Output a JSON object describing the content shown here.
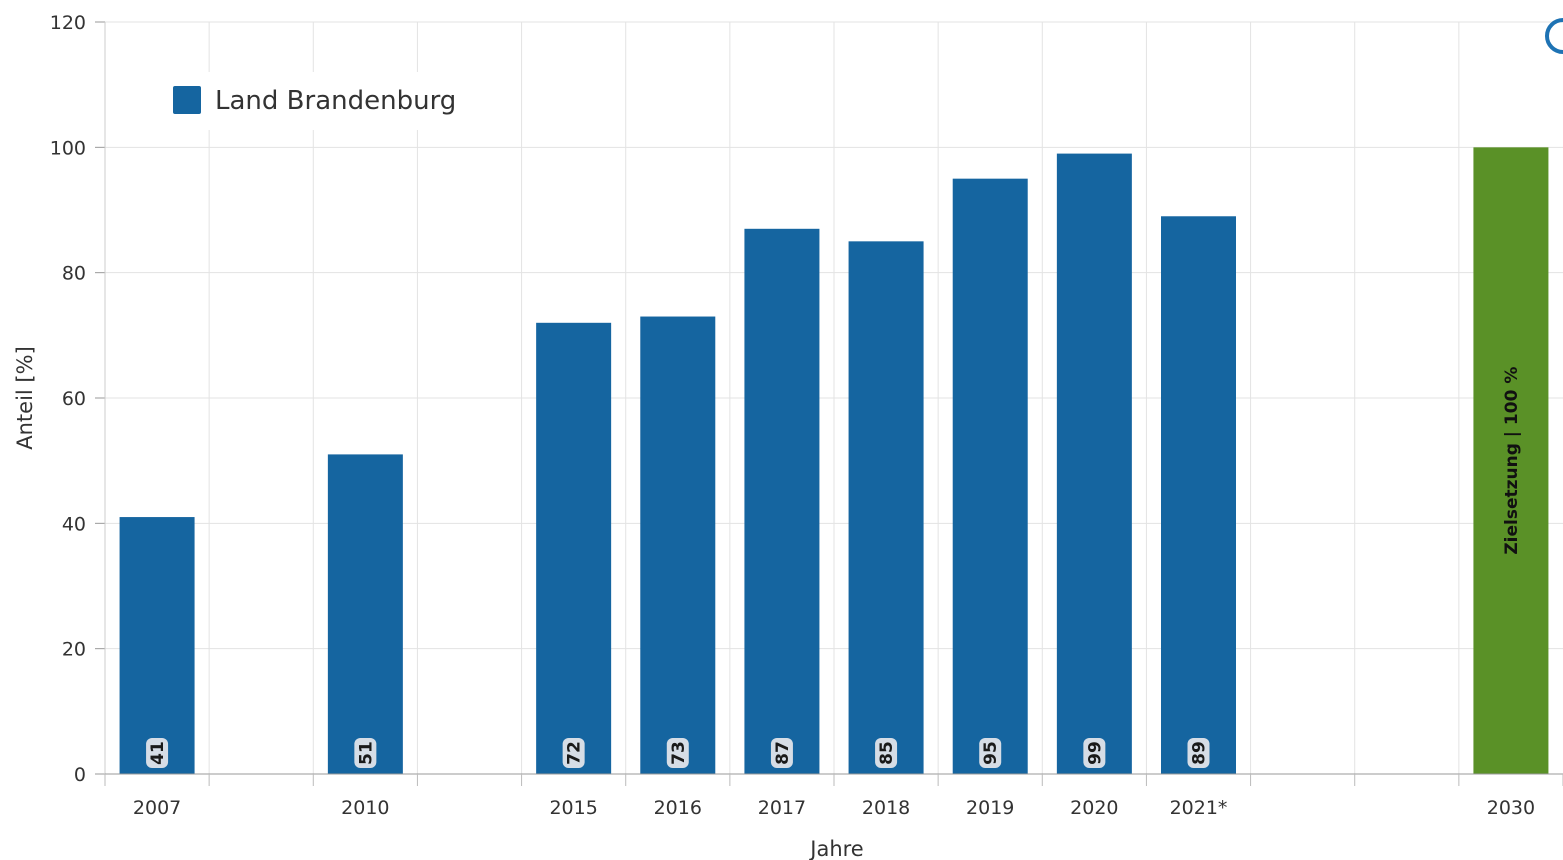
{
  "chart_data": {
    "type": "bar",
    "x_slots": [
      "2007",
      "",
      "2010",
      "",
      "2015",
      "2016",
      "2017",
      "2018",
      "2019",
      "2020",
      "2021*",
      "",
      "",
      "2030"
    ],
    "series": [
      {
        "name": "Land Brandenburg",
        "color": "#1565a0",
        "categories": [
          "2007",
          "2010",
          "2015",
          "2016",
          "2017",
          "2018",
          "2019",
          "2020",
          "2021*"
        ],
        "values": [
          41,
          51,
          72,
          73,
          87,
          85,
          95,
          99,
          89
        ],
        "labels": [
          "41",
          "51",
          "72",
          "73",
          "87",
          "85",
          "95",
          "99",
          "89"
        ]
      }
    ],
    "target": {
      "category": "2030",
      "value": 100,
      "label": "Zielsetzung | 100 %",
      "color": "#5a9127"
    },
    "ylabel": "Anteil [%]",
    "xlabel": "Jahre",
    "ylim": [
      0,
      120
    ],
    "yticks": [
      0,
      20,
      40,
      60,
      80,
      100,
      120
    ],
    "grid": true,
    "legend_position": "top-left"
  }
}
